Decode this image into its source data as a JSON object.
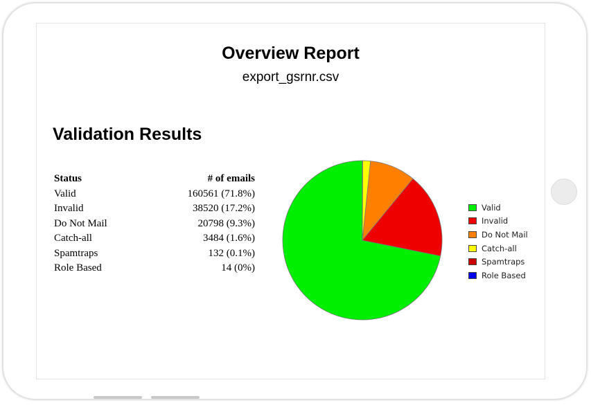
{
  "report": {
    "title": "Overview Report",
    "subtitle": "export_gsrnr.csv",
    "section_heading": "Validation Results"
  },
  "table": {
    "headers": {
      "status": "Status",
      "count": "# of emails"
    },
    "rows": [
      {
        "status": "Valid",
        "count": "160561 (71.8%)"
      },
      {
        "status": "Invalid",
        "count": "38520 (17.2%)"
      },
      {
        "status": "Do Not Mail",
        "count": "20798 (9.3%)"
      },
      {
        "status": "Catch-all",
        "count": "3484 (1.6%)"
      },
      {
        "status": "Spamtraps",
        "count": "132 (0.1%)"
      },
      {
        "status": "Role Based",
        "count": "14 (0%)"
      }
    ]
  },
  "chart_data": {
    "type": "pie",
    "categories": [
      "Valid",
      "Invalid",
      "Do Not Mail",
      "Catch-all",
      "Spamtraps",
      "Role Based"
    ],
    "values": [
      160561,
      38520,
      20798,
      3484,
      132,
      14
    ],
    "colors": [
      "#00ee00",
      "#ee0000",
      "#ff8000",
      "#ffff00",
      "#cc0000",
      "#0000ee"
    ],
    "legend_position": "right",
    "start": "top, counter-clockwise from Valid"
  }
}
